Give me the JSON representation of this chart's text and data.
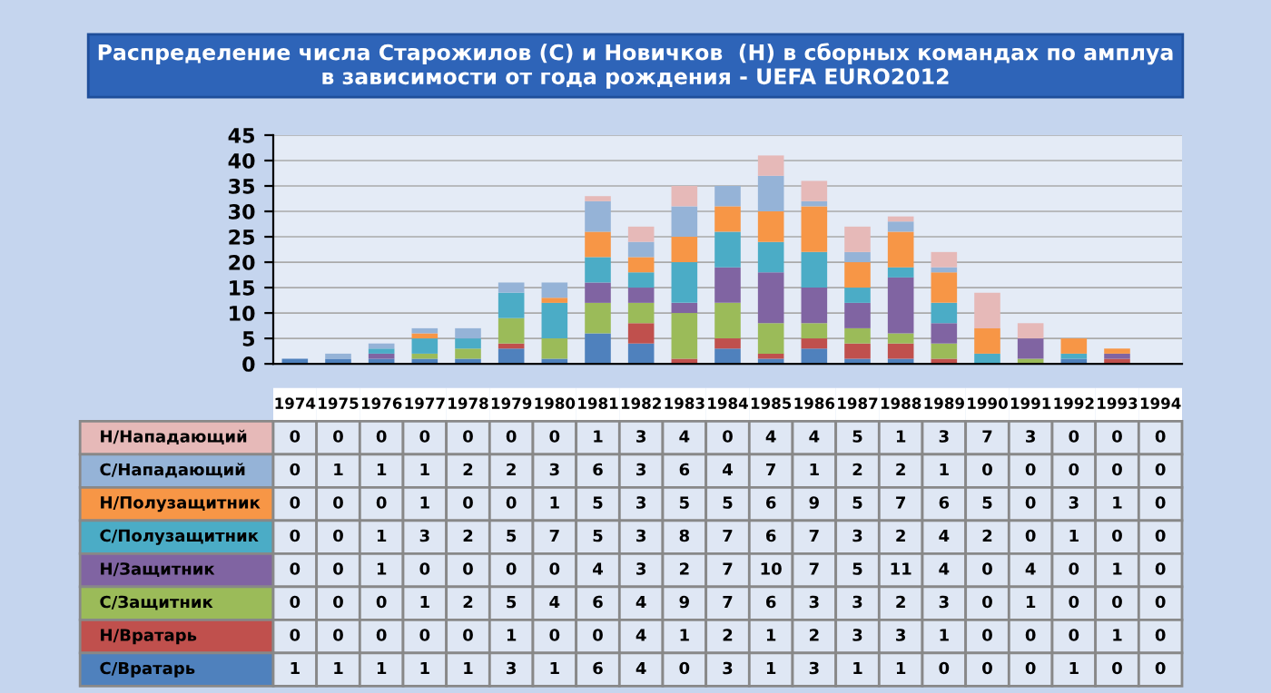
{
  "chart_data": {
    "type": "bar",
    "stacked": true,
    "title": "Распределение числа Старожилов (С) и Новичков  (Н) в сборных командах по амплуа\nв зависимости от года рождения - UEFA EURO2012",
    "categories": [
      "1974",
      "1975",
      "1976",
      "1977",
      "1978",
      "1979",
      "1980",
      "1981",
      "1982",
      "1983",
      "1984",
      "1985",
      "1986",
      "1987",
      "1988",
      "1989",
      "1990",
      "1991",
      "1992",
      "1993",
      "1994"
    ],
    "series": [
      {
        "name": "С/Вратарь",
        "color": "#4f81bd",
        "values": [
          1,
          1,
          1,
          1,
          1,
          3,
          1,
          6,
          4,
          0,
          3,
          1,
          3,
          1,
          1,
          0,
          0,
          0,
          1,
          0,
          0
        ]
      },
      {
        "name": "Н/Вратарь",
        "color": "#c0504d",
        "values": [
          0,
          0,
          0,
          0,
          0,
          1,
          0,
          0,
          4,
          1,
          2,
          1,
          2,
          3,
          3,
          1,
          0,
          0,
          0,
          1,
          0
        ]
      },
      {
        "name": "С/Защитник",
        "color": "#9bbb59",
        "values": [
          0,
          0,
          0,
          1,
          2,
          5,
          4,
          6,
          4,
          9,
          7,
          6,
          3,
          3,
          2,
          3,
          0,
          1,
          0,
          0,
          0
        ]
      },
      {
        "name": "Н/Защитник",
        "color": "#8064a2",
        "values": [
          0,
          0,
          1,
          0,
          0,
          0,
          0,
          4,
          3,
          2,
          7,
          10,
          7,
          5,
          11,
          4,
          0,
          4,
          0,
          1,
          0
        ]
      },
      {
        "name": "С/Полузащитник",
        "color": "#4bacc6",
        "values": [
          0,
          0,
          1,
          3,
          2,
          5,
          7,
          5,
          3,
          8,
          7,
          6,
          7,
          3,
          2,
          4,
          2,
          0,
          1,
          0,
          0
        ]
      },
      {
        "name": "Н/Полузащитник",
        "color": "#f79646",
        "values": [
          0,
          0,
          0,
          1,
          0,
          0,
          1,
          5,
          3,
          5,
          5,
          6,
          9,
          5,
          7,
          6,
          5,
          0,
          3,
          1,
          0
        ]
      },
      {
        "name": "С/Нападающий",
        "color": "#95b3d7",
        "values": [
          0,
          1,
          1,
          1,
          2,
          2,
          3,
          6,
          3,
          6,
          4,
          7,
          1,
          2,
          2,
          1,
          0,
          0,
          0,
          0,
          0
        ]
      },
      {
        "name": "Н/Нападающий",
        "color": "#e6b9b8",
        "values": [
          0,
          0,
          0,
          0,
          0,
          0,
          0,
          1,
          3,
          4,
          0,
          4,
          4,
          5,
          1,
          3,
          7,
          3,
          0,
          0,
          0
        ]
      }
    ],
    "ylim": [
      0,
      45
    ],
    "yticks": [
      0,
      5,
      10,
      15,
      20,
      25,
      30,
      35,
      40,
      45
    ],
    "grid": "y",
    "data_labels": true
  }
}
